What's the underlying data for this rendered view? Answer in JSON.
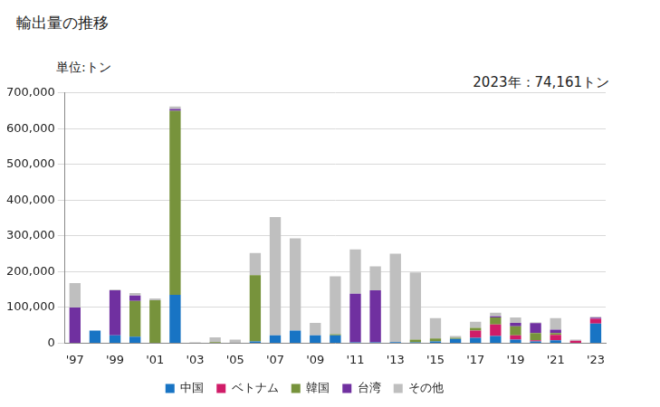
{
  "chart_data": {
    "type": "bar",
    "title": "輸出量の推移",
    "ylabel": "単位:トン",
    "annotation": "2023年：74,161トン",
    "stacked": true,
    "grid": true,
    "legend": "bottom",
    "categories": [
      "'97",
      null,
      "'99",
      null,
      "'01",
      null,
      "'03",
      null,
      "'05",
      null,
      "'07",
      null,
      "'09",
      null,
      "'11",
      null,
      "'13",
      null,
      "'15",
      null,
      "'17",
      null,
      "'19",
      null,
      "'21",
      null,
      "'23"
    ],
    "series": [
      {
        "name": "中国",
        "color": "#1874c4",
        "values": [
          0,
          35000,
          22000,
          18000,
          0,
          135000,
          0,
          0,
          0,
          5000,
          22000,
          35000,
          22000,
          22000,
          2000,
          2000,
          3000,
          2000,
          5000,
          12000,
          15000,
          20000,
          10000,
          5000,
          8000,
          0,
          55000
        ]
      },
      {
        "name": "ベトナム",
        "color": "#d01c68",
        "values": [
          0,
          0,
          0,
          0,
          0,
          0,
          0,
          0,
          0,
          0,
          0,
          0,
          0,
          0,
          0,
          0,
          0,
          0,
          0,
          0,
          20000,
          32000,
          12000,
          3000,
          15000,
          7000,
          13000
        ]
      },
      {
        "name": "韓国",
        "color": "#77933c",
        "values": [
          0,
          0,
          0,
          100000,
          120000,
          515000,
          0,
          3000,
          0,
          185000,
          0,
          0,
          0,
          3000,
          0,
          0,
          0,
          8000,
          8000,
          3000,
          8000,
          20000,
          25000,
          20000,
          5000,
          0,
          0
        ]
      },
      {
        "name": "台湾",
        "color": "#7030a0",
        "values": [
          100000,
          0,
          126000,
          15000,
          0,
          5000,
          0,
          0,
          0,
          0,
          0,
          0,
          0,
          0,
          136000,
          146000,
          0,
          0,
          0,
          0,
          0,
          3000,
          10000,
          28000,
          10000,
          0,
          3000
        ]
      },
      {
        "name": "その他",
        "color": "#bfbfbf",
        "values": [
          68000,
          0,
          2000,
          7000,
          5000,
          7000,
          2000,
          13000,
          10000,
          62000,
          331000,
          258000,
          35000,
          162000,
          124000,
          67000,
          247000,
          188000,
          57000,
          5000,
          17000,
          10000,
          15000,
          2000,
          32000,
          3000,
          3000
        ]
      }
    ],
    "ylim": [
      0,
      700000
    ],
    "yticks": [
      0,
      {
        "value": 100000,
        "label": "100,000"
      },
      {
        "value": 200000,
        "label": "200,000"
      },
      {
        "value": 300000,
        "label": "300,000"
      },
      {
        "value": 400000,
        "label": "400,000"
      },
      {
        "value": 500000,
        "label": "500,000"
      },
      {
        "value": 600000,
        "label": "600,000"
      },
      {
        "value": 700000,
        "label": "700,000"
      }
    ]
  }
}
